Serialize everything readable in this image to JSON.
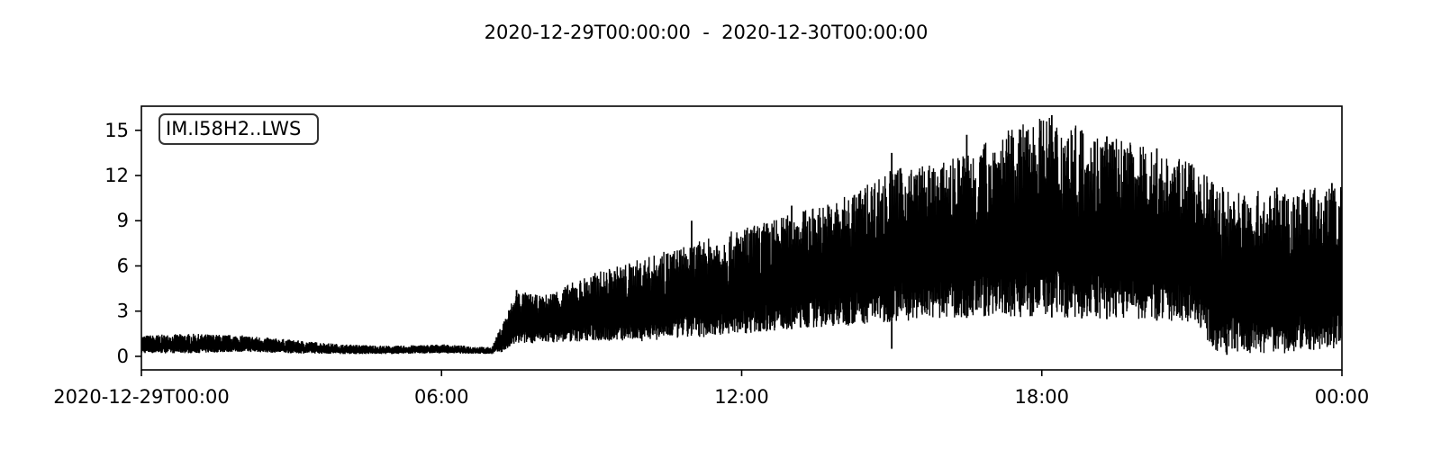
{
  "chart_data": {
    "type": "line",
    "title": "2020-12-29T00:00:00  -  2020-12-30T00:00:00",
    "trace_label": "IM.I58H2..LWS",
    "xlabel": "",
    "ylabel": "",
    "xlim": [
      0,
      24
    ],
    "ylim": [
      -0.9,
      16.6
    ],
    "x_ticks": [
      {
        "value": 0,
        "label": "2020-12-29T00:00"
      },
      {
        "value": 6,
        "label": "06:00"
      },
      {
        "value": 12,
        "label": "12:00"
      },
      {
        "value": 18,
        "label": "18:00"
      },
      {
        "value": 24,
        "label": "00:00"
      }
    ],
    "y_ticks": [
      0,
      3,
      6,
      9,
      12,
      15
    ],
    "grid": false,
    "legend_position": "top-left",
    "line_color": "#000000",
    "envelope": {
      "hours": [
        0,
        1,
        2,
        3,
        4,
        5,
        6,
        7,
        7.25,
        7.5,
        8,
        9,
        10,
        11,
        12,
        13,
        14,
        15,
        16,
        17,
        18,
        19,
        20,
        21,
        21.5,
        22,
        23,
        24
      ],
      "min": [
        0.2,
        0.2,
        0.3,
        0.2,
        0.15,
        0.15,
        0.2,
        0.15,
        0.3,
        0.8,
        0.9,
        1.0,
        1.0,
        1.2,
        1.5,
        1.8,
        2.0,
        2.3,
        2.5,
        2.6,
        2.6,
        2.5,
        2.4,
        2.3,
        0.3,
        0.2,
        0.2,
        0.5
      ],
      "max": [
        1.4,
        1.5,
        1.4,
        1.1,
        0.8,
        0.7,
        0.8,
        0.6,
        2.5,
        4.4,
        4.0,
        5.5,
        6.5,
        7.5,
        8.5,
        9.5,
        10.5,
        12.5,
        12.8,
        14.5,
        16.0,
        15.0,
        14.0,
        12.8,
        11.5,
        11.0,
        11.0,
        11.5
      ]
    },
    "peaks": [
      {
        "hour": 7.5,
        "value": 4.4
      },
      {
        "hour": 10.5,
        "value": 6.8
      },
      {
        "hour": 11.0,
        "value": 9.0
      },
      {
        "hour": 13.0,
        "value": 10.0
      },
      {
        "hour": 15.0,
        "value": 13.5
      },
      {
        "hour": 16.5,
        "value": 14.7
      },
      {
        "hour": 18.2,
        "value": 16.0
      },
      {
        "hour": 18.8,
        "value": 15.0
      },
      {
        "hour": 19.3,
        "value": 14.6
      },
      {
        "hour": 20.3,
        "value": 13.8
      },
      {
        "hour": 22.7,
        "value": 11.2
      },
      {
        "hour": 23.8,
        "value": 11.5
      },
      {
        "hour": 15.0,
        "value": 0.5
      },
      {
        "hour": 21.7,
        "value": 0.1
      }
    ]
  }
}
